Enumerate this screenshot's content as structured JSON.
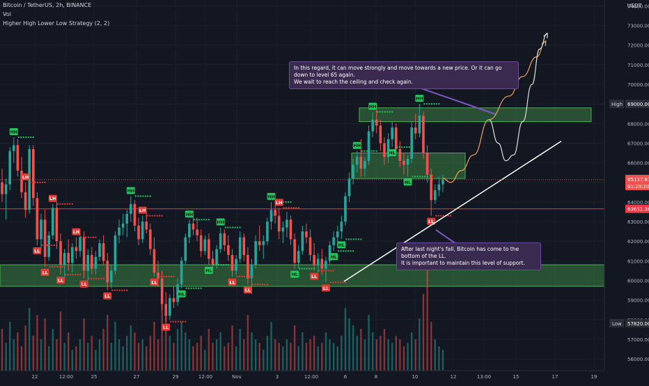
{
  "header": {
    "symbol_line": "Bitcoin / TetherUS, 2h, BINANCE",
    "indicator_vol": "Vol",
    "indicator_strategy": "Higher High Lower Low Strategy (2, 2)"
  },
  "price_axis": {
    "currency": "USDT",
    "high_label": "High",
    "high_value": "69000.00",
    "low_label": "Low",
    "low_value": "57820.00",
    "last_price": "65137.67",
    "countdown": "01:28:20",
    "line_price": "63651.36"
  },
  "annotations": {
    "top_note": [
      "In this regard, it can move strongly and move towards a new price. Or it can go down to level 65 again.",
      "We wait to reach the ceiling and check again."
    ],
    "bottom_note": [
      "After last night's fall, Bitcoin has come to the bottom of the LL.",
      "It is important to maintain this level of support."
    ]
  },
  "chart_data": {
    "type": "candlestick",
    "title": "Bitcoin / TetherUS, 2h, BINANCE",
    "y_ticks": [
      56000,
      57000,
      58000,
      59000,
      60000,
      61000,
      62000,
      63000,
      64000,
      65000,
      66000,
      67000,
      68000,
      69000,
      70000,
      71000,
      72000,
      73000,
      74000
    ],
    "y_tick_labels": [
      "56000.00",
      "57000.00",
      "58000.00",
      "59000.00",
      "60000.00",
      "61000.00",
      "62000.00",
      "63000.00",
      "64000.00",
      "65000.00",
      "66000.00",
      "67000.00",
      "68000.00",
      "69000.00",
      "70000.00",
      "71000.00",
      "72000.00",
      "73000.00",
      "74000.00"
    ],
    "x_tick_labels": [
      "22",
      "12:00",
      "25",
      "27",
      "29",
      "12:00",
      "Nov",
      "3",
      "12:00",
      "6",
      "8",
      "10",
      "12",
      "13:00",
      "15",
      "17",
      "19"
    ],
    "ylim": [
      55400,
      74300
    ],
    "candles": [
      [
        65000,
        65700,
        64000,
        64400
      ],
      [
        64400,
        65200,
        63100,
        64900
      ],
      [
        64900,
        66800,
        64600,
        66600
      ],
      [
        66600,
        67300,
        66000,
        66900
      ],
      [
        66900,
        67200,
        65300,
        65600
      ],
      [
        65600,
        66300,
        64200,
        64500
      ],
      [
        64500,
        65000,
        63200,
        63600
      ],
      [
        63600,
        66900,
        63400,
        66700
      ],
      [
        66700,
        66900,
        63800,
        64200
      ],
      [
        64200,
        64500,
        61800,
        62100
      ],
      [
        62100,
        63400,
        61600,
        63100
      ],
      [
        63100,
        63600,
        60700,
        61200
      ],
      [
        61200,
        62500,
        61000,
        62300
      ],
      [
        62300,
        63900,
        62100,
        63700
      ],
      [
        63700,
        64000,
        61600,
        62000
      ],
      [
        62000,
        62400,
        60300,
        60800
      ],
      [
        60800,
        61600,
        59900,
        61400
      ],
      [
        61400,
        62100,
        60500,
        60900
      ],
      [
        60900,
        61900,
        60400,
        61700
      ],
      [
        61700,
        62200,
        61100,
        61500
      ],
      [
        61500,
        62400,
        61200,
        62200
      ],
      [
        62200,
        62500,
        60100,
        60500
      ],
      [
        60500,
        61600,
        60000,
        61300
      ],
      [
        61300,
        61700,
        60300,
        60600
      ],
      [
        60600,
        61500,
        60300,
        61200
      ],
      [
        61200,
        62100,
        61000,
        61900
      ],
      [
        61900,
        62300,
        60800,
        61000
      ],
      [
        61000,
        61400,
        59500,
        59900
      ],
      [
        59900,
        60800,
        59600,
        60500
      ],
      [
        60500,
        62500,
        60300,
        62300
      ],
      [
        62300,
        63100,
        61900,
        62700
      ],
      [
        62700,
        63400,
        62300,
        62900
      ],
      [
        62900,
        63600,
        62200,
        63400
      ],
      [
        63400,
        64300,
        63000,
        63900
      ],
      [
        63900,
        64100,
        62500,
        62800
      ],
      [
        62800,
        63200,
        61800,
        62100
      ],
      [
        62100,
        63300,
        61900,
        63000
      ],
      [
        63000,
        63500,
        62400,
        62600
      ],
      [
        62600,
        62900,
        61300,
        61600
      ],
      [
        61600,
        62200,
        60200,
        60400
      ],
      [
        60400,
        61000,
        59700,
        60100
      ],
      [
        60100,
        60500,
        58500,
        58800
      ],
      [
        58800,
        59400,
        57900,
        58200
      ],
      [
        58200,
        59300,
        58000,
        59100
      ],
      [
        59100,
        59700,
        58600,
        58900
      ],
      [
        58900,
        60100,
        58700,
        59800
      ],
      [
        59800,
        61200,
        59600,
        61000
      ],
      [
        61000,
        62400,
        60800,
        62200
      ],
      [
        62200,
        63100,
        61900,
        62900
      ],
      [
        62900,
        63400,
        62300,
        62600
      ],
      [
        62600,
        63200,
        62000,
        62300
      ],
      [
        62300,
        62600,
        61200,
        61500
      ],
      [
        61500,
        62300,
        61300,
        62100
      ],
      [
        62100,
        62400,
        60800,
        61100
      ],
      [
        61100,
        61500,
        60500,
        60800
      ],
      [
        60800,
        61800,
        60600,
        61600
      ],
      [
        61600,
        62700,
        61400,
        62400
      ],
      [
        62400,
        62600,
        61500,
        61800
      ],
      [
        61800,
        62300,
        61000,
        61300
      ],
      [
        61300,
        61600,
        60200,
        60500
      ],
      [
        60500,
        61300,
        60300,
        61100
      ],
      [
        61100,
        62500,
        60900,
        62200
      ],
      [
        62200,
        62400,
        61000,
        61300
      ],
      [
        61300,
        61700,
        59800,
        60100
      ],
      [
        60100,
        61100,
        59300,
        60800
      ],
      [
        60800,
        62300,
        60600,
        62000
      ],
      [
        62000,
        62800,
        61500,
        61800
      ],
      [
        61800,
        62300,
        61100,
        62000
      ],
      [
        62000,
        63200,
        61800,
        63000
      ],
      [
        63000,
        64000,
        62600,
        63600
      ],
      [
        63600,
        64100,
        62900,
        63300
      ],
      [
        63300,
        63700,
        62100,
        62500
      ],
      [
        62500,
        63000,
        61900,
        62700
      ],
      [
        62700,
        63500,
        62200,
        63100
      ],
      [
        63100,
        63300,
        61800,
        62100
      ],
      [
        62100,
        62400,
        60600,
        60900
      ],
      [
        60900,
        61800,
        60600,
        61500
      ],
      [
        61500,
        62800,
        61300,
        62500
      ],
      [
        62500,
        62900,
        61900,
        62200
      ],
      [
        62200,
        62600,
        61000,
        61300
      ],
      [
        61300,
        61900,
        60500,
        60800
      ],
      [
        60800,
        61400,
        60400,
        61100
      ],
      [
        61100,
        61600,
        60300,
        60600
      ],
      [
        60600,
        61200,
        59900,
        61000
      ],
      [
        61000,
        62000,
        60800,
        61800
      ],
      [
        61800,
        62500,
        61500,
        62200
      ],
      [
        62200,
        62800,
        61700,
        62500
      ],
      [
        62500,
        63300,
        62100,
        63000
      ],
      [
        63000,
        64500,
        62800,
        64300
      ],
      [
        64300,
        65500,
        64000,
        65200
      ],
      [
        65200,
        66200,
        64900,
        65900
      ],
      [
        65900,
        66600,
        65500,
        66300
      ],
      [
        66300,
        67200,
        65300,
        65700
      ],
      [
        65700,
        66300,
        65300,
        66100
      ],
      [
        66100,
        67900,
        65900,
        67600
      ],
      [
        67600,
        68600,
        67300,
        68200
      ],
      [
        68200,
        68800,
        67500,
        67900
      ],
      [
        67900,
        68200,
        66600,
        67000
      ],
      [
        67000,
        67300,
        65900,
        66300
      ],
      [
        66300,
        67500,
        66000,
        67200
      ],
      [
        67200,
        68100,
        66800,
        67800
      ],
      [
        67800,
        68000,
        66500,
        66700
      ],
      [
        66700,
        67100,
        65800,
        66100
      ],
      [
        66100,
        66500,
        65400,
        65900
      ],
      [
        65900,
        66400,
        65300,
        66200
      ],
      [
        66200,
        68100,
        66000,
        67800
      ],
      [
        67800,
        68500,
        67200,
        67500
      ],
      [
        67500,
        69000,
        67300,
        68400
      ],
      [
        68400,
        68600,
        66200,
        66500
      ],
      [
        66500,
        66900,
        65000,
        65400
      ],
      [
        65400,
        65700,
        63300,
        64100
      ],
      [
        64100,
        64900,
        63900,
        64600
      ],
      [
        64600,
        65300,
        64300,
        64900
      ],
      [
        64900,
        65400,
        64500,
        65138
      ]
    ],
    "volume": [
      12,
      8,
      14,
      9,
      11,
      7,
      13,
      18,
      10,
      16,
      9,
      15,
      7,
      12,
      9,
      17,
      8,
      11,
      6,
      7,
      9,
      15,
      8,
      10,
      6,
      9,
      12,
      16,
      8,
      14,
      9,
      7,
      10,
      13,
      11,
      8,
      9,
      7,
      10,
      14,
      9,
      22,
      16,
      10,
      8,
      12,
      14,
      11,
      9,
      7,
      8,
      10,
      6,
      12,
      8,
      9,
      11,
      7,
      8,
      13,
      7,
      12,
      9,
      16,
      11,
      9,
      8,
      6,
      10,
      14,
      9,
      8,
      7,
      9,
      8,
      13,
      7,
      11,
      8,
      9,
      10,
      7,
      8,
      11,
      9,
      8,
      7,
      10,
      18,
      15,
      13,
      10,
      12,
      9,
      16,
      11,
      9,
      10,
      12,
      9,
      8,
      10,
      9,
      7,
      8,
      11,
      9,
      15,
      22,
      30,
      14,
      9,
      7,
      6
    ],
    "pivots": [
      {
        "idx": 3,
        "label": "HH"
      },
      {
        "idx": 6,
        "label": "LH"
      },
      {
        "idx": 9,
        "label": "LL"
      },
      {
        "idx": 11,
        "label": "LL"
      },
      {
        "idx": 13,
        "label": "LH"
      },
      {
        "idx": 15,
        "label": "LL"
      },
      {
        "idx": 19,
        "label": "LH"
      },
      {
        "idx": 21,
        "label": "LL"
      },
      {
        "idx": 27,
        "label": "LL"
      },
      {
        "idx": 33,
        "label": "HH"
      },
      {
        "idx": 36,
        "label": "LH"
      },
      {
        "idx": 39,
        "label": "LL"
      },
      {
        "idx": 42,
        "label": "LL"
      },
      {
        "idx": 46,
        "label": "HL"
      },
      {
        "idx": 48,
        "label": "HH"
      },
      {
        "idx": 53,
        "label": "HL"
      },
      {
        "idx": 56,
        "label": "HH"
      },
      {
        "idx": 59,
        "label": "LL"
      },
      {
        "idx": 63,
        "label": "LL"
      },
      {
        "idx": 69,
        "label": "HH"
      },
      {
        "idx": 71,
        "label": "LH"
      },
      {
        "idx": 75,
        "label": "HL"
      },
      {
        "idx": 80,
        "label": "LL"
      },
      {
        "idx": 83,
        "label": "LL"
      },
      {
        "idx": 85,
        "label": "HL"
      },
      {
        "idx": 87,
        "label": "HL"
      },
      {
        "idx": 91,
        "label": "HH"
      },
      {
        "idx": 95,
        "label": "HH"
      },
      {
        "idx": 100,
        "label": "HL"
      },
      {
        "idx": 104,
        "label": "HL"
      },
      {
        "idx": 107,
        "label": "HH"
      },
      {
        "idx": 110,
        "label": "LL"
      }
    ],
    "zones": [
      {
        "y_low": 59700,
        "y_high": 60800
      },
      {
        "y_low": 68100,
        "y_high": 68800
      },
      {
        "y_low": 65200,
        "y_high": 66500
      }
    ],
    "horizontal_line": 63651.36,
    "projection_paths": {
      "orange": [
        [
          66000,
          65200
        ],
        [
          66500,
          65000
        ],
        [
          67200,
          65600
        ],
        [
          68000,
          66400
        ],
        [
          69000,
          68200
        ],
        [
          70300,
          69400
        ],
        [
          71200,
          70400
        ],
        [
          72100,
          71400
        ],
        [
          72700,
          72200
        ]
      ],
      "white": [
        [
          69000,
          68200
        ],
        [
          69600,
          67000
        ],
        [
          70100,
          66100
        ],
        [
          70600,
          66400
        ],
        [
          71200,
          68100
        ],
        [
          71800,
          70000
        ],
        [
          72300,
          71800
        ],
        [
          72800,
          72600
        ]
      ]
    }
  }
}
